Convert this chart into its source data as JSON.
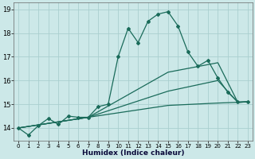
{
  "xlabel": "Humidex (Indice chaleur)",
  "bg_color": "#cce8e8",
  "grid_color": "#aacfcf",
  "line_color": "#1a6b5a",
  "xlim": [
    -0.5,
    23.5
  ],
  "ylim": [
    13.45,
    19.3
  ],
  "xticks": [
    0,
    1,
    2,
    3,
    4,
    5,
    6,
    7,
    8,
    9,
    10,
    11,
    12,
    13,
    14,
    15,
    16,
    17,
    18,
    19,
    20,
    21,
    22,
    23
  ],
  "yticks": [
    14,
    15,
    16,
    17,
    18,
    19
  ],
  "line1_x": [
    0,
    1,
    2,
    3,
    4,
    5,
    6,
    7,
    8,
    9,
    10,
    11,
    12,
    13,
    14,
    15,
    16,
    17,
    18,
    19,
    20,
    21,
    22,
    23
  ],
  "line1_y": [
    14.0,
    13.7,
    14.1,
    14.4,
    14.15,
    14.5,
    14.45,
    14.45,
    14.9,
    15.0,
    17.0,
    18.2,
    17.6,
    18.5,
    18.8,
    18.9,
    18.3,
    17.2,
    16.6,
    16.85,
    16.1,
    15.5,
    15.1,
    15.1
  ],
  "line2_x": [
    0,
    7,
    15,
    20,
    22,
    23
  ],
  "line2_y": [
    14.0,
    14.45,
    16.35,
    16.75,
    15.08,
    15.1
  ],
  "line3_x": [
    0,
    7,
    15,
    20,
    22,
    23
  ],
  "line3_y": [
    14.0,
    14.45,
    15.55,
    16.0,
    15.08,
    15.1
  ],
  "line4_x": [
    0,
    7,
    15,
    20,
    22,
    23
  ],
  "line4_y": [
    14.0,
    14.45,
    14.95,
    15.05,
    15.08,
    15.1
  ]
}
